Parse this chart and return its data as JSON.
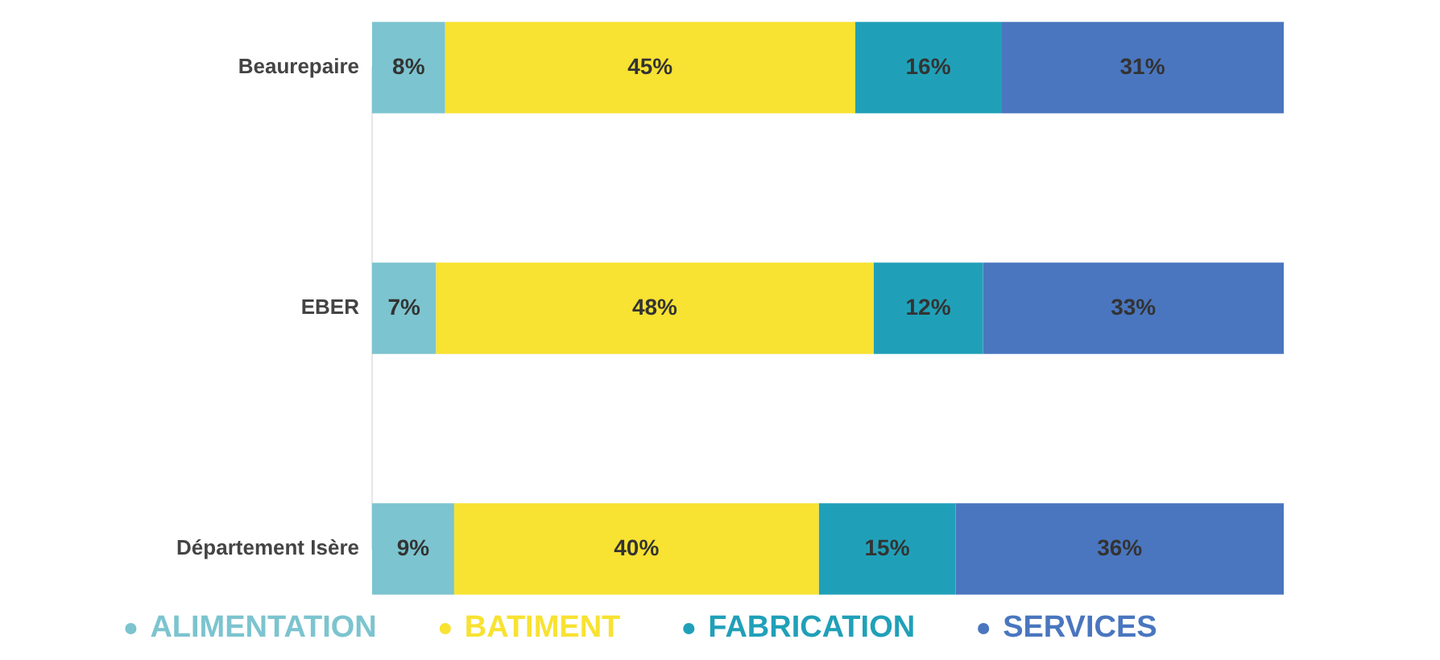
{
  "chart_data": {
    "type": "bar",
    "orientation": "horizontal",
    "stacked": true,
    "categories": [
      "Beaurepaire",
      "EBER",
      "Département Isère"
    ],
    "xlim": [
      0,
      100
    ],
    "tick_labels": "y",
    "grid": false,
    "legend": "bottom",
    "marker": "circle",
    "series": [
      {
        "name": "ALIMENTATION",
        "color": "#7cc4cf",
        "values": [
          8,
          7,
          9
        ],
        "value_labels": [
          "8%",
          "7%",
          "9%"
        ]
      },
      {
        "name": "BATIMENT",
        "color": "#f8e232",
        "values": [
          45,
          48,
          40
        ],
        "value_labels": [
          "45%",
          "48%",
          "40%"
        ]
      },
      {
        "name": "FABRICATION",
        "color": "#20a0b8",
        "values": [
          16,
          12,
          15
        ],
        "value_labels": [
          "16%",
          "12%",
          "15%"
        ]
      },
      {
        "name": "SERVICES",
        "color": "#4a76bf",
        "values": [
          31,
          33,
          36
        ],
        "value_labels": [
          "31%",
          "33%",
          "36%"
        ]
      }
    ]
  }
}
